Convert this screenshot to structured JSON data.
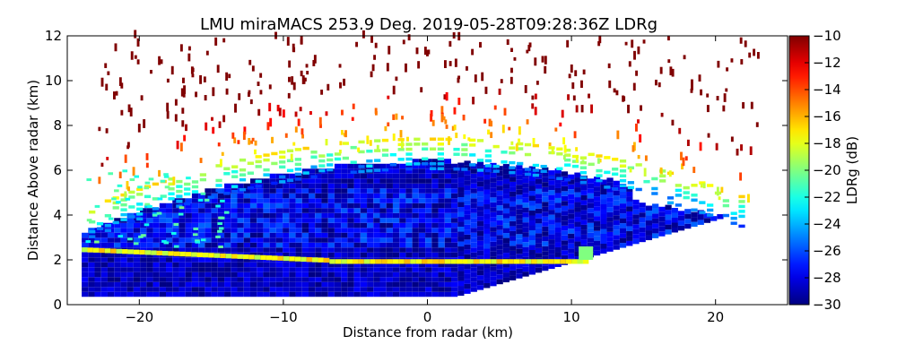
{
  "chart_data": {
    "type": "heatmap",
    "title": "LMU miraMACS 253.9 Deg. 2019-05-28T09:28:36Z  LDRg",
    "xlabel": "Distance from radar (km)",
    "ylabel": "Distance Above radar  (km)",
    "xlim": [
      -25,
      25
    ],
    "ylim": [
      0,
      12
    ],
    "x_ticks": [
      -20,
      -10,
      0,
      10,
      20
    ],
    "x_tick_labels": [
      "−20",
      "−10",
      "0",
      "10",
      "20"
    ],
    "y_ticks": [
      0,
      2,
      4,
      6,
      8,
      10,
      12
    ],
    "y_tick_labels": [
      "0",
      "2",
      "4",
      "6",
      "8",
      "10",
      "12"
    ],
    "colorbar": {
      "label": "LDRg (dB)",
      "range": [
        -30,
        -10
      ],
      "ticks": [
        -10,
        -12,
        -14,
        -16,
        -18,
        -20,
        -22,
        -24,
        -26,
        -28,
        -30
      ],
      "tick_labels": [
        "−10",
        "−12",
        "−14",
        "−16",
        "−18",
        "−20",
        "−22",
        "−24",
        "−26",
        "−28",
        "−30"
      ],
      "colormap": "jet"
    },
    "field_regions": [
      {
        "name": "dense ice cloud core",
        "x_range": [
          -22,
          18
        ],
        "height_range": [
          0.3,
          6.2
        ],
        "ldr_db": -29
      },
      {
        "name": "melting layer bright band",
        "x_range": [
          -24,
          11
        ],
        "height_range": [
          1.8,
          2.05
        ],
        "ldr_db": -18
      },
      {
        "name": "cloud top edge",
        "height_range": [
          5.5,
          7.2
        ],
        "ldr_db": -21
      },
      {
        "name": "sparse upper echoes",
        "height_range": [
          7,
          12
        ],
        "ldr_db": -11
      }
    ]
  }
}
